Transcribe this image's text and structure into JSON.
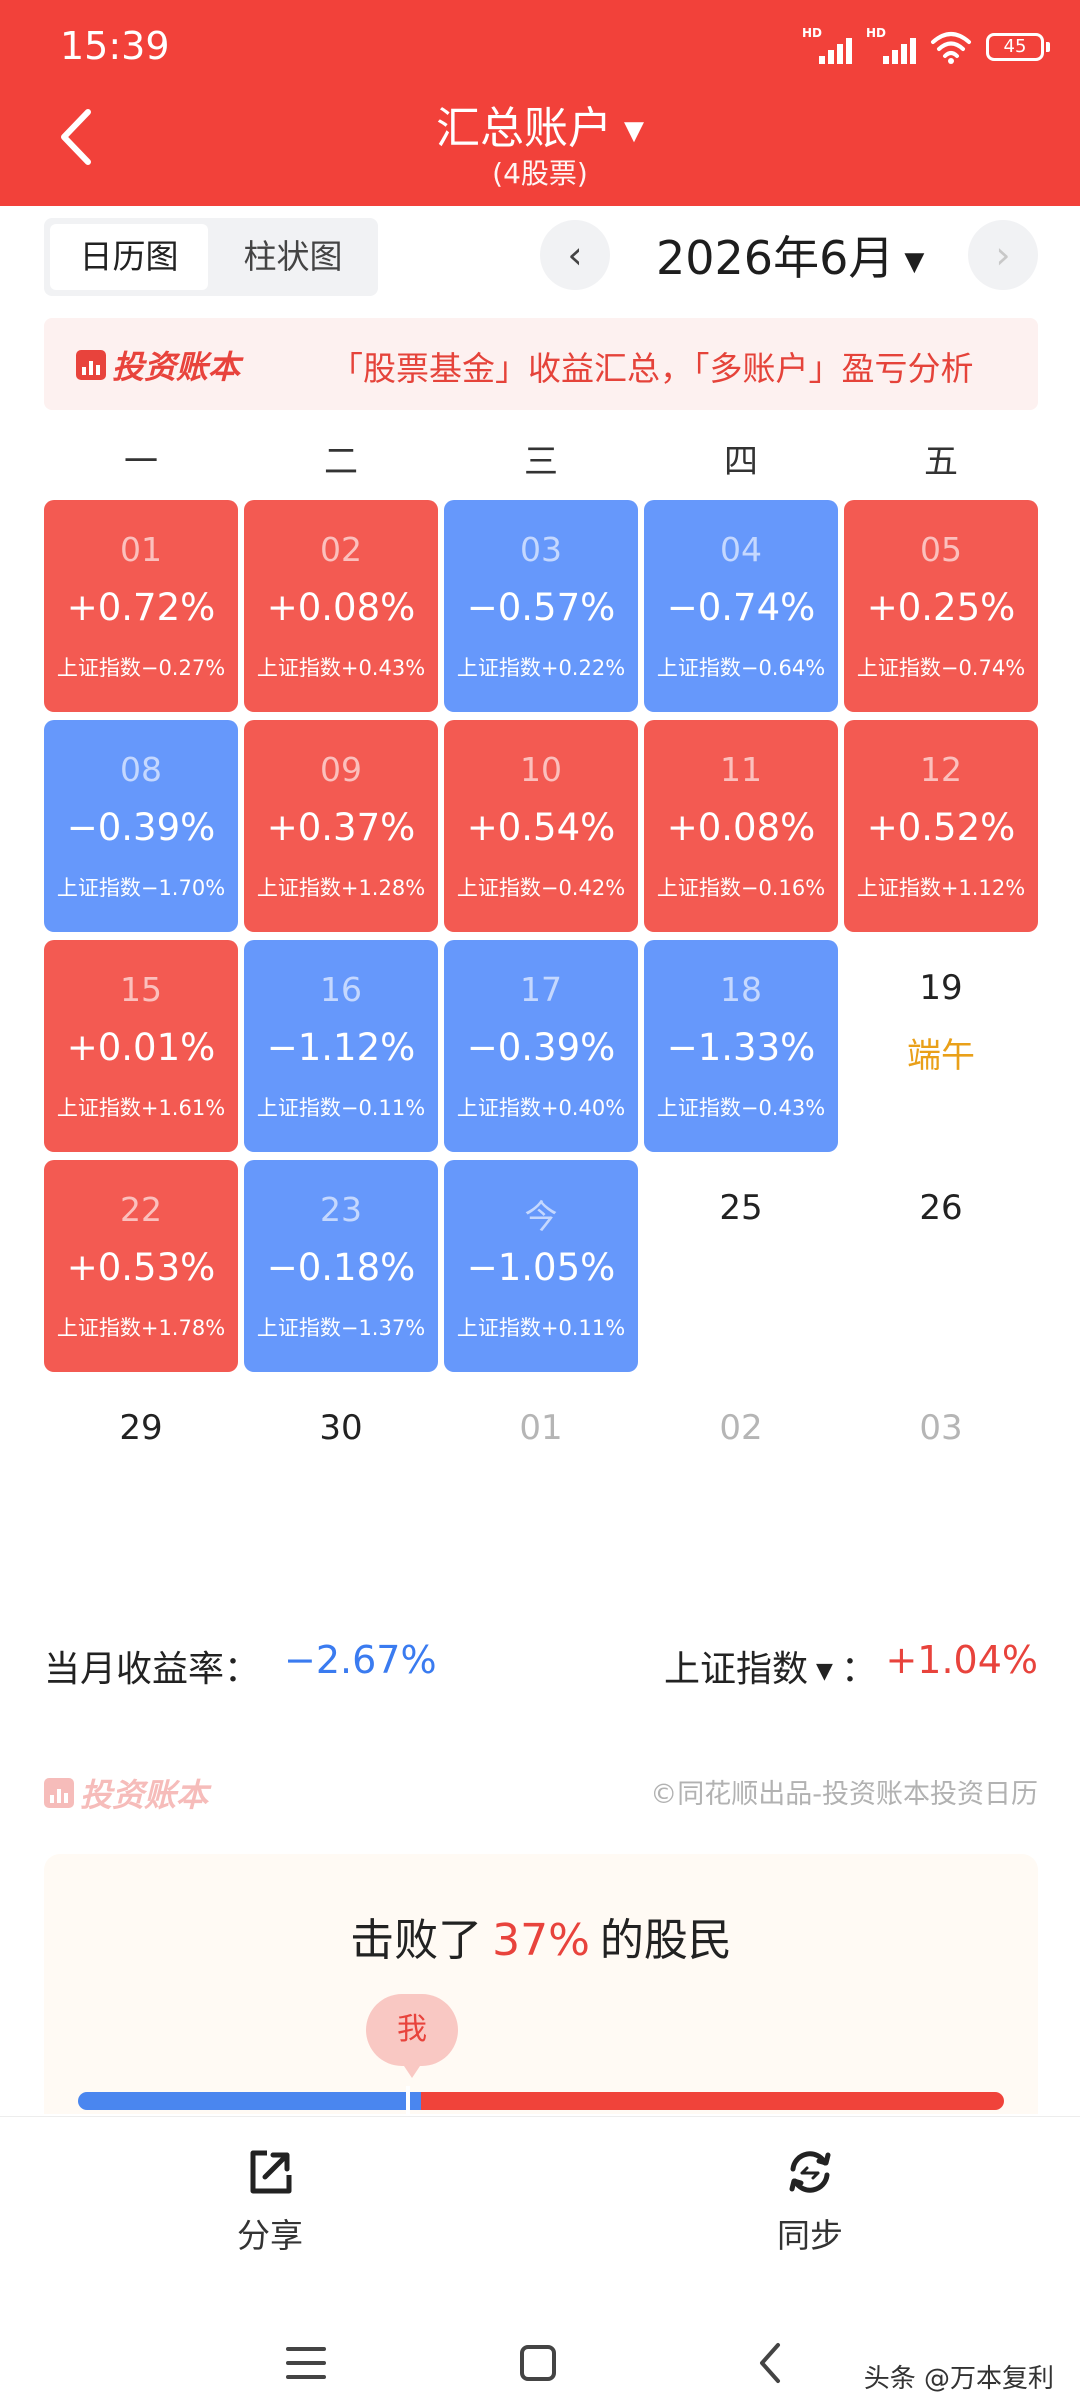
{
  "status_bar": {
    "time": "15:39",
    "signal1_label": "HD",
    "signal2_label": "HD",
    "battery": "45"
  },
  "header": {
    "title": "汇总账户",
    "subtitle": "(4股票)"
  },
  "toolbar": {
    "view_options": [
      "日历图",
      "柱状图"
    ],
    "active_view": "日历图",
    "month": "2026年6月"
  },
  "banner": {
    "logo": "投资账本",
    "text": "「股票基金」收益汇总，「多账户」盈亏分析"
  },
  "calendar": {
    "weekdays": [
      "一",
      "二",
      "三",
      "四",
      "五"
    ],
    "days": [
      {
        "day": "01",
        "change": "+0.72%",
        "index": "上证指数−0.27%",
        "trend": "up"
      },
      {
        "day": "02",
        "change": "+0.08%",
        "index": "上证指数+0.43%",
        "trend": "up"
      },
      {
        "day": "03",
        "change": "−0.57%",
        "index": "上证指数+0.22%",
        "trend": "down"
      },
      {
        "day": "04",
        "change": "−0.74%",
        "index": "上证指数−0.64%",
        "trend": "down"
      },
      {
        "day": "05",
        "change": "+0.25%",
        "index": "上证指数−0.74%",
        "trend": "up"
      },
      {
        "day": "08",
        "change": "−0.39%",
        "index": "上证指数−1.70%",
        "trend": "down"
      },
      {
        "day": "09",
        "change": "+0.37%",
        "index": "上证指数+1.28%",
        "trend": "up"
      },
      {
        "day": "10",
        "change": "+0.54%",
        "index": "上证指数−0.42%",
        "trend": "up"
      },
      {
        "day": "11",
        "change": "+0.08%",
        "index": "上证指数−0.16%",
        "trend": "up"
      },
      {
        "day": "12",
        "change": "+0.52%",
        "index": "上证指数+1.12%",
        "trend": "up"
      },
      {
        "day": "15",
        "change": "+0.01%",
        "index": "上证指数+1.61%",
        "trend": "up"
      },
      {
        "day": "16",
        "change": "−1.12%",
        "index": "上证指数−0.11%",
        "trend": "down"
      },
      {
        "day": "17",
        "change": "−0.39%",
        "index": "上证指数+0.40%",
        "trend": "down"
      },
      {
        "day": "18",
        "change": "−1.33%",
        "index": "上证指数−0.43%",
        "trend": "down"
      },
      {
        "day": "19",
        "holiday": "端午",
        "trend": "none"
      },
      {
        "day": "22",
        "change": "+0.53%",
        "index": "上证指数+1.78%",
        "trend": "up"
      },
      {
        "day": "23",
        "change": "−0.18%",
        "index": "上证指数−1.37%",
        "trend": "down"
      },
      {
        "day": "今",
        "change": "−1.05%",
        "index": "上证指数+0.11%",
        "trend": "down"
      },
      {
        "day": "25",
        "trend": "none"
      },
      {
        "day": "26",
        "trend": "none"
      },
      {
        "day": "29",
        "trend": "none"
      },
      {
        "day": "30",
        "trend": "none"
      },
      {
        "day": "01",
        "trend": "none",
        "faded": true
      },
      {
        "day": "02",
        "trend": "none",
        "faded": true
      },
      {
        "day": "03",
        "trend": "none",
        "faded": true
      }
    ]
  },
  "summary": {
    "month_return_label": "当月收益率：",
    "month_return": "−2.67%",
    "benchmark_label": "上证指数",
    "benchmark_sep": "：",
    "benchmark_return": "+1.04%"
  },
  "footer": {
    "logo": "投资账本",
    "credit": "©同花顺出品-投资账本投资日历"
  },
  "ranking": {
    "prefix": "击败了",
    "percent": "37%",
    "suffix": "的股民",
    "me_label": "我",
    "beaten_fraction": 0.37
  },
  "bottom_nav": {
    "share": "分享",
    "sync": "同步"
  },
  "watermark": "头条 @万本复利",
  "colors": {
    "header": "#f2413a",
    "up": "#f35a52",
    "down": "#6698fb",
    "holiday": "#e9a019"
  }
}
